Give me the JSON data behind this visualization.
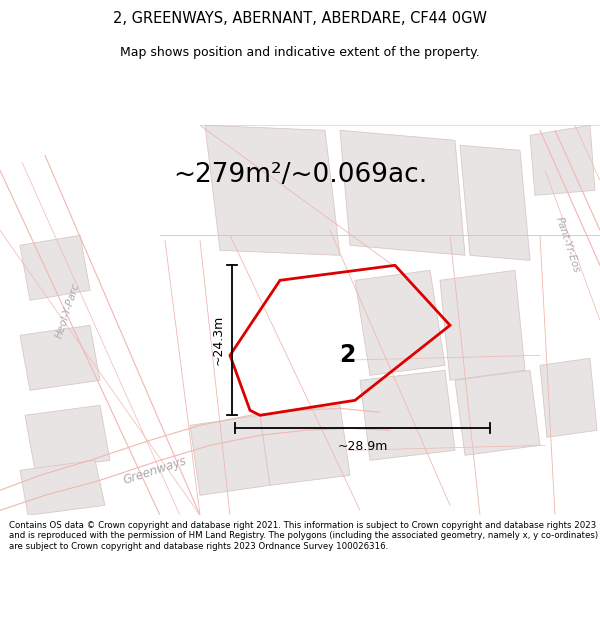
{
  "title": "2, GREENWAYS, ABERNANT, ABERDARE, CF44 0GW",
  "subtitle": "Map shows position and indicative extent of the property.",
  "area_text": "~279m²/~0.069ac.",
  "dim_width": "~28.9m",
  "dim_height": "~24.3m",
  "property_number": "2",
  "footer": "Contains OS data © Crown copyright and database right 2021. This information is subject to Crown copyright and database rights 2023 and is reproduced with the permission of HM Land Registry. The polygons (including the associated geometry, namely x, y co-ordinates) are subject to Crown copyright and database rights 2023 Ordnance Survey 100026316.",
  "bg_color": "#ffffff",
  "map_bg": "#ffffff",
  "plot_outline_color": "#dd0000",
  "road_stroke": "#f0b8b0",
  "building_fill": "#e8e4e4",
  "building_stroke": "#d8c8c4",
  "footer_fontsize": 6.2,
  "title_fontsize": 10.5,
  "subtitle_fontsize": 9.0,
  "area_fontsize": 19,
  "dim_fontsize": 9,
  "street_fontsize": 7.5
}
